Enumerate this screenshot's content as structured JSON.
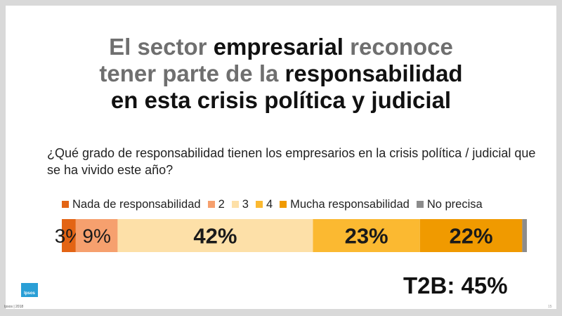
{
  "title": {
    "line1": [
      {
        "text": "El sector ",
        "tone": "gray"
      },
      {
        "text": "empresarial",
        "tone": "dark"
      },
      {
        "text": " reconoce",
        "tone": "gray"
      }
    ],
    "line2": [
      {
        "text": "tener parte de la ",
        "tone": "gray"
      },
      {
        "text": "responsabilidad",
        "tone": "dark"
      }
    ],
    "line3": [
      {
        "text": "en esta crisis política y judicial",
        "tone": "dark"
      }
    ]
  },
  "question": "¿Qué grado de responsabilidad tienen los empresarios en la crisis política / judicial que se ha vivido este año?",
  "chart_data": {
    "type": "bar",
    "orientation": "horizontal-stacked-100",
    "series": [
      {
        "name": "Nada de responsabilidad",
        "value": 3,
        "label": "3%",
        "color": "#e36414"
      },
      {
        "name": "2",
        "value": 9,
        "label": "9%",
        "color": "#f6a06e"
      },
      {
        "name": "3",
        "value": 42,
        "label": "42%",
        "color": "#fde0a8"
      },
      {
        "name": "4",
        "value": 23,
        "label": "23%",
        "color": "#fbb931"
      },
      {
        "name": "Mucha responsabilidad",
        "value": 22,
        "label": "22%",
        "color": "#f09a00"
      },
      {
        "name": "No precisa",
        "value": 1,
        "label": "",
        "color": "#8c8c8c"
      }
    ],
    "legend_position": "top",
    "grid": false
  },
  "t2b": "T2B: 45%",
  "logo_text": "Ipsos",
  "footer": {
    "left": "Ipsos | 2018",
    "right": "15"
  }
}
